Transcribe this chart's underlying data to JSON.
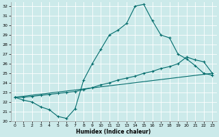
{
  "xlabel": "Humidex (Indice chaleur)",
  "xlim": [
    -0.5,
    23.5
  ],
  "ylim": [
    20,
    32.4
  ],
  "yticks": [
    20,
    21,
    22,
    23,
    24,
    25,
    26,
    27,
    28,
    29,
    30,
    31,
    32
  ],
  "xticks": [
    0,
    1,
    2,
    3,
    4,
    5,
    6,
    7,
    8,
    9,
    10,
    11,
    12,
    13,
    14,
    15,
    16,
    17,
    18,
    19,
    20,
    21,
    22,
    23
  ],
  "background_color": "#cceaea",
  "grid_color": "#ffffff",
  "line_color": "#006b6b",
  "line1_x": [
    0,
    1,
    2,
    3,
    4,
    5,
    6,
    7,
    8,
    9,
    10,
    11,
    12,
    13,
    14,
    15,
    16,
    17,
    18,
    19,
    20,
    21,
    22,
    23
  ],
  "line1_y": [
    22.5,
    22.2,
    22.0,
    21.5,
    21.2,
    20.5,
    20.3,
    21.3,
    24.3,
    26.0,
    27.5,
    29.0,
    29.5,
    30.2,
    32.0,
    32.2,
    30.5,
    29.0,
    28.7,
    27.0,
    26.5,
    25.8,
    25.0,
    24.8
  ],
  "line2_x": [
    0,
    1,
    2,
    3,
    4,
    5,
    6,
    7,
    8,
    9,
    10,
    11,
    12,
    13,
    14,
    15,
    16,
    17,
    18,
    19,
    20,
    21,
    22,
    23
  ],
  "line2_y": [
    22.5,
    22.5,
    22.6,
    22.7,
    22.8,
    22.9,
    23.0,
    23.1,
    23.3,
    23.5,
    23.8,
    24.0,
    24.3,
    24.5,
    24.7,
    25.0,
    25.2,
    25.5,
    25.7,
    26.0,
    26.7,
    26.4,
    26.2,
    25.0
  ],
  "line3_x": [
    0,
    23
  ],
  "line3_y": [
    22.5,
    25.0
  ]
}
